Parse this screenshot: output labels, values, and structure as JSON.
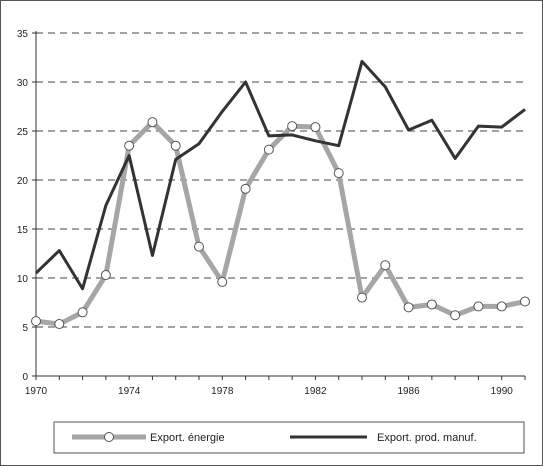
{
  "chart_data": {
    "type": "line",
    "x": [
      1970,
      1971,
      1972,
      1973,
      1974,
      1975,
      1976,
      1977,
      1978,
      1979,
      1980,
      1981,
      1982,
      1983,
      1984,
      1985,
      1986,
      1987,
      1988,
      1989,
      1990,
      1991
    ],
    "series": [
      {
        "name": "Export. énergie",
        "color": "#a6a6a6",
        "marker": "circle",
        "values": [
          5.6,
          5.3,
          6.5,
          10.3,
          23.5,
          25.9,
          23.5,
          13.2,
          9.6,
          19.1,
          23.1,
          25.5,
          25.4,
          20.7,
          8.0,
          11.3,
          7.0,
          7.3,
          6.2,
          7.1,
          7.1,
          7.6
        ]
      },
      {
        "name": "Export. prod. manuf.",
        "color": "#333333",
        "marker": "none",
        "values": [
          10.5,
          12.8,
          8.9,
          17.4,
          22.5,
          12.3,
          22.1,
          23.7,
          27.0,
          30.0,
          24.5,
          24.6,
          24.0,
          23.5,
          32.1,
          29.5,
          25.1,
          26.1,
          22.2,
          25.5,
          25.4,
          27.2
        ]
      }
    ],
    "yticks": [
      "0",
      "5",
      "10",
      "15",
      "20",
      "25",
      "30",
      "35"
    ],
    "xticks": [
      "1970",
      "1974",
      "1978",
      "1982",
      "1986",
      "1990"
    ],
    "ylim": [
      0,
      35
    ],
    "xlim": [
      1970,
      1991
    ],
    "grid": "horizontal dashed",
    "legend_position": "bottom"
  }
}
